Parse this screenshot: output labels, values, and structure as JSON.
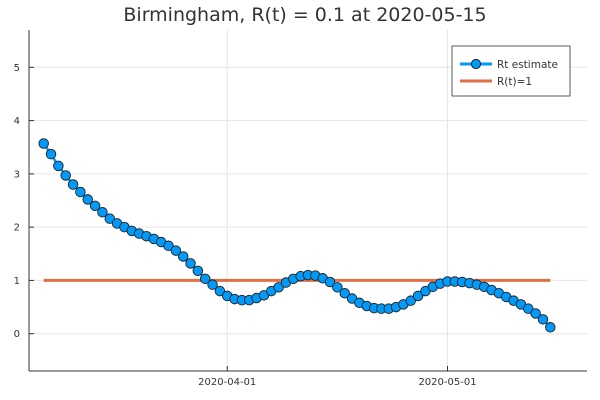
{
  "colors": {
    "estimate": "#009AFA",
    "reference": "#E26F46",
    "marker_stroke": "#222222"
  },
  "chart_data": {
    "type": "line",
    "title": "Birmingham, R(t) = 0.1 at 2020-05-15",
    "xlabel": "",
    "ylabel": "",
    "x_ticks": [
      "2020-04-01",
      "2020-05-01"
    ],
    "y_ticks": [
      0,
      1,
      2,
      3,
      4,
      5
    ],
    "xlim": [
      "2020-03-05",
      "2020-05-20"
    ],
    "ylim": [
      -0.7,
      5.7
    ],
    "grid": true,
    "legend_position": "top-right",
    "series": [
      {
        "name": "Rt estimate",
        "style": "line-with-circle-markers",
        "x": [
          "2020-03-07",
          "2020-03-08",
          "2020-03-09",
          "2020-03-10",
          "2020-03-11",
          "2020-03-12",
          "2020-03-13",
          "2020-03-14",
          "2020-03-15",
          "2020-03-16",
          "2020-03-17",
          "2020-03-18",
          "2020-03-19",
          "2020-03-20",
          "2020-03-21",
          "2020-03-22",
          "2020-03-23",
          "2020-03-24",
          "2020-03-25",
          "2020-03-26",
          "2020-03-27",
          "2020-03-28",
          "2020-03-29",
          "2020-03-30",
          "2020-03-31",
          "2020-04-01",
          "2020-04-02",
          "2020-04-03",
          "2020-04-04",
          "2020-04-05",
          "2020-04-06",
          "2020-04-07",
          "2020-04-08",
          "2020-04-09",
          "2020-04-10",
          "2020-04-11",
          "2020-04-12",
          "2020-04-13",
          "2020-04-14",
          "2020-04-15",
          "2020-04-16",
          "2020-04-17",
          "2020-04-18",
          "2020-04-19",
          "2020-04-20",
          "2020-04-21",
          "2020-04-22",
          "2020-04-23",
          "2020-04-24",
          "2020-04-25",
          "2020-04-26",
          "2020-04-27",
          "2020-04-28",
          "2020-04-29",
          "2020-04-30",
          "2020-05-01",
          "2020-05-02",
          "2020-05-03",
          "2020-05-04",
          "2020-05-05",
          "2020-05-06",
          "2020-05-07",
          "2020-05-08",
          "2020-05-09",
          "2020-05-10",
          "2020-05-11",
          "2020-05-12",
          "2020-05-13",
          "2020-05-14",
          "2020-05-15"
        ],
        "y": [
          3.57,
          3.37,
          3.15,
          2.97,
          2.8,
          2.66,
          2.52,
          2.4,
          2.28,
          2.16,
          2.07,
          2.0,
          1.93,
          1.88,
          1.83,
          1.78,
          1.72,
          1.65,
          1.56,
          1.45,
          1.32,
          1.18,
          1.03,
          0.92,
          0.8,
          0.71,
          0.65,
          0.63,
          0.63,
          0.67,
          0.72,
          0.8,
          0.87,
          0.96,
          1.03,
          1.08,
          1.1,
          1.09,
          1.04,
          0.97,
          0.87,
          0.76,
          0.66,
          0.58,
          0.52,
          0.48,
          0.47,
          0.47,
          0.5,
          0.55,
          0.62,
          0.71,
          0.8,
          0.88,
          0.94,
          0.98,
          0.98,
          0.97,
          0.95,
          0.92,
          0.88,
          0.82,
          0.76,
          0.69,
          0.62,
          0.55,
          0.47,
          0.38,
          0.27,
          0.12
        ]
      },
      {
        "name": "R(t)=1",
        "style": "line",
        "x": [
          "2020-03-07",
          "2020-05-15"
        ],
        "y": [
          1,
          1
        ]
      }
    ]
  }
}
